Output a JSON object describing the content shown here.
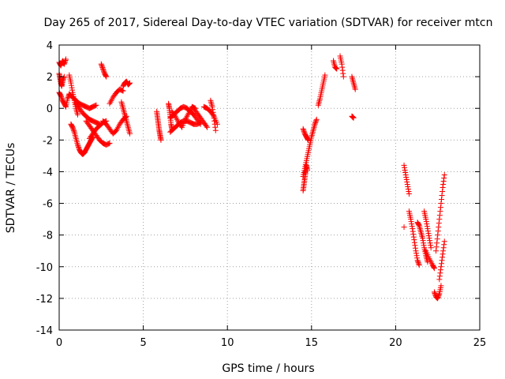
{
  "chart_data": {
    "type": "scatter",
    "title": "Day 265 of 2017, Sidereal Day-to-day VTEC variation (SDTVAR) for receiver mtcn",
    "xlabel": "GPS time / hours",
    "ylabel": "SDTVAR / TECUs",
    "xlim": [
      0,
      25
    ],
    "ylim": [
      -14,
      4
    ],
    "x_ticks": [
      0,
      5,
      10,
      15,
      20,
      25
    ],
    "y_ticks": [
      4,
      2,
      0,
      -2,
      -4,
      -6,
      -8,
      -10,
      -12,
      -14
    ],
    "grid": true,
    "legend": "none",
    "marker": "+",
    "color": "#ff0000",
    "series": [
      {
        "segments": [
          {
            "x": [
              0.0,
              0.1,
              0.2,
              0.3,
              0.4
            ],
            "y": [
              2.9,
              2.7,
              3.0,
              2.8,
              3.1
            ]
          },
          {
            "x": [
              0.0,
              0.05,
              0.1,
              0.15,
              0.2,
              0.3
            ],
            "y": [
              2.2,
              1.9,
              1.6,
              1.4,
              1.7,
              2.0
            ]
          },
          {
            "x": [
              0.0,
              0.1,
              0.2,
              0.3,
              0.4,
              0.5,
              0.6
            ],
            "y": [
              1.0,
              0.8,
              0.5,
              0.3,
              0.1,
              0.6,
              0.9
            ]
          },
          {
            "x": [
              0.6,
              0.7,
              0.8,
              0.9,
              1.0,
              1.1
            ],
            "y": [
              2.1,
              1.6,
              1.0,
              0.5,
              0.0,
              -0.4
            ]
          },
          {
            "x": [
              0.6,
              0.8,
              1.0,
              1.2,
              1.4,
              1.6,
              1.8,
              2.0,
              2.2
            ],
            "y": [
              0.9,
              0.7,
              0.5,
              0.3,
              0.2,
              0.1,
              0.0,
              0.1,
              0.2
            ]
          },
          {
            "x": [
              0.7,
              0.8,
              0.9,
              1.0,
              1.1,
              1.2,
              1.3,
              1.4,
              1.5,
              1.6,
              1.7,
              1.8,
              1.9,
              2.0
            ],
            "y": [
              -1.0,
              -1.2,
              -1.5,
              -1.9,
              -2.3,
              -2.6,
              -2.8,
              -2.9,
              -2.8,
              -2.6,
              -2.4,
              -2.2,
              -2.0,
              -1.8
            ]
          },
          {
            "x": [
              1.0,
              1.2,
              1.4,
              1.6,
              1.8,
              2.0,
              2.2,
              2.4
            ],
            "y": [
              0.3,
              0.0,
              -0.3,
              -0.5,
              -0.7,
              -0.8,
              -0.9,
              -1.0
            ]
          },
          {
            "x": [
              1.6,
              1.8,
              2.0,
              2.2,
              2.4,
              2.6,
              2.8,
              3.0
            ],
            "y": [
              -0.8,
              -1.1,
              -1.4,
              -1.7,
              -2.0,
              -2.2,
              -2.3,
              -2.2
            ]
          },
          {
            "x": [
              1.8,
              2.0,
              2.2,
              2.4,
              2.6,
              2.8
            ],
            "y": [
              -1.9,
              -1.6,
              -1.3,
              -1.1,
              -0.9,
              -0.8
            ]
          },
          {
            "x": [
              2.5,
              2.6,
              2.7,
              2.8
            ],
            "y": [
              2.8,
              2.5,
              2.2,
              2.0
            ]
          },
          {
            "x": [
              2.6,
              2.8,
              3.0,
              3.2,
              3.4,
              3.6,
              3.8,
              4.0
            ],
            "y": [
              -0.8,
              -1.0,
              -1.3,
              -1.6,
              -1.4,
              -1.0,
              -0.7,
              -0.5
            ]
          },
          {
            "x": [
              3.0,
              3.2,
              3.4,
              3.6,
              3.8
            ],
            "y": [
              0.3,
              0.7,
              1.0,
              1.2,
              1.1
            ]
          },
          {
            "x": [
              3.8,
              3.9,
              4.0,
              4.1,
              4.2
            ],
            "y": [
              1.4,
              1.6,
              1.7,
              1.5,
              1.6
            ]
          },
          {
            "x": [
              3.7,
              3.8,
              3.9,
              4.0,
              4.1,
              4.2
            ],
            "y": [
              0.4,
              0.0,
              -0.4,
              -0.8,
              -1.2,
              -1.6
            ]
          },
          {
            "x": [
              5.8,
              5.85,
              5.9,
              5.95,
              6.0,
              6.05
            ],
            "y": [
              -0.2,
              -0.6,
              -1.0,
              -1.4,
              -1.7,
              -2.0
            ]
          },
          {
            "x": [
              6.5,
              6.55,
              6.6,
              6.65,
              6.7
            ],
            "y": [
              0.3,
              0.0,
              -0.5,
              -1.0,
              -1.3
            ]
          },
          {
            "x": [
              6.6,
              6.8,
              7.0,
              7.2,
              7.4,
              7.6,
              7.8,
              8.0,
              8.2,
              8.4
            ],
            "y": [
              -0.6,
              -0.4,
              -0.2,
              0.0,
              0.1,
              0.0,
              -0.2,
              -0.4,
              -0.7,
              -1.0
            ]
          },
          {
            "x": [
              6.6,
              6.8,
              7.0,
              7.2,
              7.4,
              7.6,
              7.8,
              8.0,
              8.2,
              8.4
            ],
            "y": [
              -1.5,
              -1.3,
              -1.1,
              -0.9,
              -0.8,
              -0.8,
              -0.9,
              -1.0,
              -1.0,
              -0.9
            ]
          },
          {
            "x": [
              6.7,
              6.9,
              7.1,
              7.3,
              7.5,
              7.7,
              7.9,
              8.1
            ],
            "y": [
              -0.2,
              -0.5,
              -0.9,
              -1.2,
              -0.7,
              -0.3,
              0.1,
              0.0
            ]
          },
          {
            "x": [
              8.0,
              8.2,
              8.4,
              8.6,
              8.8
            ],
            "y": [
              0.0,
              -0.3,
              -0.6,
              -0.9,
              -1.2
            ]
          },
          {
            "x": [
              8.6,
              8.8,
              9.0,
              9.2,
              9.4
            ],
            "y": [
              0.1,
              0.0,
              -0.2,
              -0.5,
              -1.0
            ]
          },
          {
            "x": [
              9.0,
              9.1,
              9.2,
              9.3
            ],
            "y": [
              0.5,
              0.1,
              -0.6,
              -1.4
            ]
          },
          {
            "x": [
              14.5,
              14.55,
              14.6,
              14.65,
              14.7,
              14.75
            ],
            "y": [
              -5.2,
              -4.8,
              -4.4,
              -4.0,
              -3.6,
              -3.9
            ]
          },
          {
            "x": [
              14.5,
              14.6,
              14.7,
              14.8,
              14.9,
              15.0,
              15.1,
              15.2,
              15.3
            ],
            "y": [
              -4.3,
              -3.8,
              -3.3,
              -2.8,
              -2.3,
              -1.8,
              -1.4,
              -1.0,
              -0.7
            ]
          },
          {
            "x": [
              14.5,
              14.6,
              14.7,
              14.8
            ],
            "y": [
              -1.3,
              -1.6,
              -1.8,
              -2.0
            ]
          },
          {
            "x": [
              15.4,
              15.5,
              15.6,
              15.7,
              15.8
            ],
            "y": [
              0.2,
              0.6,
              1.1,
              1.6,
              2.1
            ]
          },
          {
            "x": [
              16.3,
              16.4,
              16.5
            ],
            "y": [
              3.0,
              2.6,
              2.5
            ]
          },
          {
            "x": [
              16.7,
              16.8,
              16.9
            ],
            "y": [
              3.3,
              2.8,
              2.0
            ]
          },
          {
            "x": [
              17.4,
              17.5,
              17.6
            ],
            "y": [
              2.0,
              1.6,
              1.2
            ]
          },
          {
            "x": [
              17.4,
              17.5
            ],
            "y": [
              -0.5,
              -0.6
            ]
          },
          {
            "x": [
              20.5,
              20.6,
              20.7,
              20.8
            ],
            "y": [
              -3.6,
              -4.2,
              -4.8,
              -5.4
            ]
          },
          {
            "x": [
              20.5
            ],
            "y": [
              -7.5
            ]
          },
          {
            "x": [
              20.8,
              20.9,
              21.0,
              21.1,
              21.2,
              21.3,
              21.4
            ],
            "y": [
              -6.5,
              -7.0,
              -7.6,
              -8.3,
              -9.0,
              -9.6,
              -9.9
            ]
          },
          {
            "x": [
              21.3,
              21.4,
              21.5,
              21.6,
              21.7,
              21.8,
              21.9
            ],
            "y": [
              -7.2,
              -7.4,
              -7.8,
              -8.2,
              -8.8,
              -9.3,
              -9.7
            ]
          },
          {
            "x": [
              21.7,
              21.8,
              21.9,
              22.0,
              22.1
            ],
            "y": [
              -6.5,
              -7.0,
              -7.6,
              -8.2,
              -8.8
            ]
          },
          {
            "x": [
              21.8,
              22.0,
              22.2,
              22.3
            ],
            "y": [
              -9.0,
              -9.5,
              -9.9,
              -10.1
            ]
          },
          {
            "x": [
              22.3,
              22.4,
              22.5,
              22.6,
              22.7
            ],
            "y": [
              -11.6,
              -11.9,
              -12.0,
              -11.7,
              -11.2
            ]
          },
          {
            "x": [
              22.4,
              22.5,
              22.6,
              22.7,
              22.8,
              22.9
            ],
            "y": [
              -9.0,
              -8.0,
              -7.0,
              -6.0,
              -5.0,
              -4.2
            ]
          },
          {
            "x": [
              22.6,
              22.7,
              22.8,
              22.9
            ],
            "y": [
              -10.8,
              -10.0,
              -9.2,
              -8.4
            ]
          }
        ]
      }
    ]
  }
}
